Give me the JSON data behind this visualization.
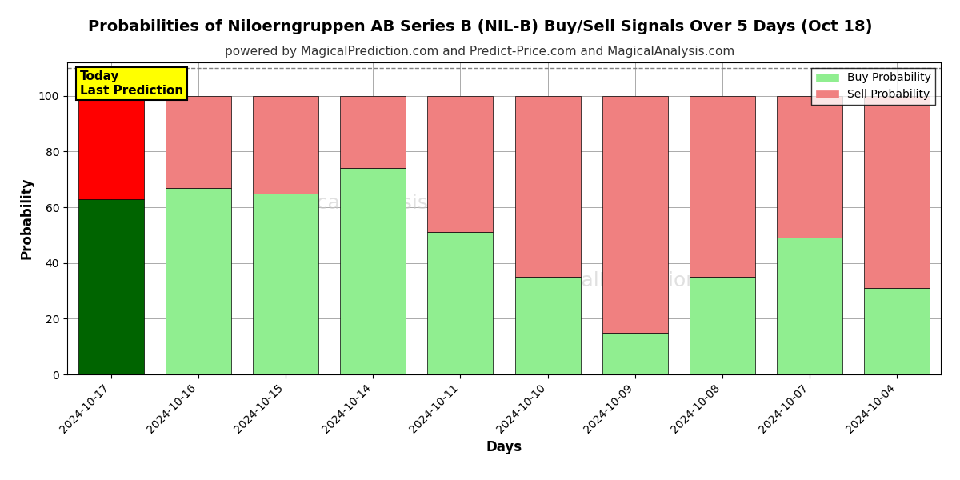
{
  "title": "Probabilities of Niloerngruppen AB Series B (NIL-B) Buy/Sell Signals Over 5 Days (Oct 18)",
  "subtitle": "powered by MagicalPrediction.com and Predict-Price.com and MagicalAnalysis.com",
  "xlabel": "Days",
  "ylabel": "Probability",
  "categories": [
    "2024-10-17",
    "2024-10-16",
    "2024-10-15",
    "2024-10-14",
    "2024-10-11",
    "2024-10-10",
    "2024-10-09",
    "2024-10-08",
    "2024-10-07",
    "2024-10-04"
  ],
  "buy_values": [
    63,
    67,
    65,
    74,
    51,
    35,
    15,
    35,
    49,
    31
  ],
  "sell_values": [
    37,
    33,
    35,
    26,
    49,
    65,
    85,
    65,
    51,
    69
  ],
  "buy_colors": [
    "#006400",
    "#90EE90",
    "#90EE90",
    "#90EE90",
    "#90EE90",
    "#90EE90",
    "#90EE90",
    "#90EE90",
    "#90EE90",
    "#90EE90"
  ],
  "sell_colors": [
    "#FF0000",
    "#F08080",
    "#F08080",
    "#F08080",
    "#F08080",
    "#F08080",
    "#F08080",
    "#F08080",
    "#F08080",
    "#F08080"
  ],
  "legend_buy_color": "#90EE90",
  "legend_sell_color": "#F08080",
  "today_label": "Today\nLast Prediction",
  "today_index": 0,
  "ylim": [
    0,
    112
  ],
  "dashed_line_y": 110,
  "background_color": "#ffffff",
  "grid_color": "#aaaaaa",
  "title_fontsize": 14,
  "subtitle_fontsize": 11,
  "axis_label_fontsize": 12,
  "tick_fontsize": 10,
  "bar_width": 0.75
}
